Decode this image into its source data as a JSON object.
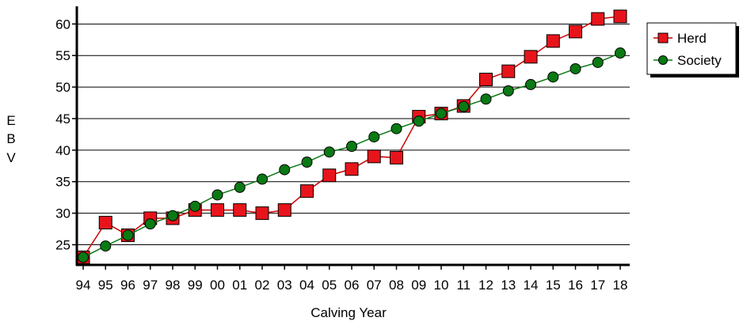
{
  "chart_data": {
    "type": "line",
    "x": [
      "94",
      "95",
      "96",
      "97",
      "98",
      "99",
      "00",
      "01",
      "02",
      "03",
      "04",
      "05",
      "06",
      "07",
      "08",
      "09",
      "10",
      "11",
      "12",
      "13",
      "14",
      "15",
      "16",
      "17",
      "18"
    ],
    "series": [
      {
        "name": "Herd",
        "color": "#e8141b",
        "line_color": "#cc0000",
        "marker": "square",
        "values": [
          23.0,
          28.5,
          26.5,
          29.2,
          29.2,
          30.5,
          30.5,
          30.5,
          30.0,
          30.5,
          33.5,
          36.0,
          37.0,
          39.0,
          38.8,
          45.3,
          45.8,
          47.0,
          51.2,
          52.5,
          54.8,
          57.3,
          58.8,
          60.8,
          61.2
        ]
      },
      {
        "name": "Society",
        "color": "#0a7a14",
        "line_color": "#0a7a14",
        "marker": "circle",
        "values": [
          23.0,
          24.8,
          26.5,
          28.3,
          29.6,
          31.1,
          32.9,
          34.1,
          35.4,
          36.9,
          38.1,
          39.7,
          40.6,
          42.1,
          43.4,
          44.6,
          45.8,
          46.9,
          48.1,
          49.4,
          50.4,
          51.6,
          52.9,
          53.9,
          55.4
        ]
      }
    ],
    "xlabel": "Calving Year",
    "ylabel": "EBV",
    "ylabel_letters": [
      "E",
      "B",
      "V"
    ],
    "yticks": [
      25,
      30,
      35,
      40,
      45,
      50,
      55,
      60
    ],
    "ylim": [
      21.8,
      62.8
    ],
    "grid": true,
    "legend_position": "top-right"
  }
}
